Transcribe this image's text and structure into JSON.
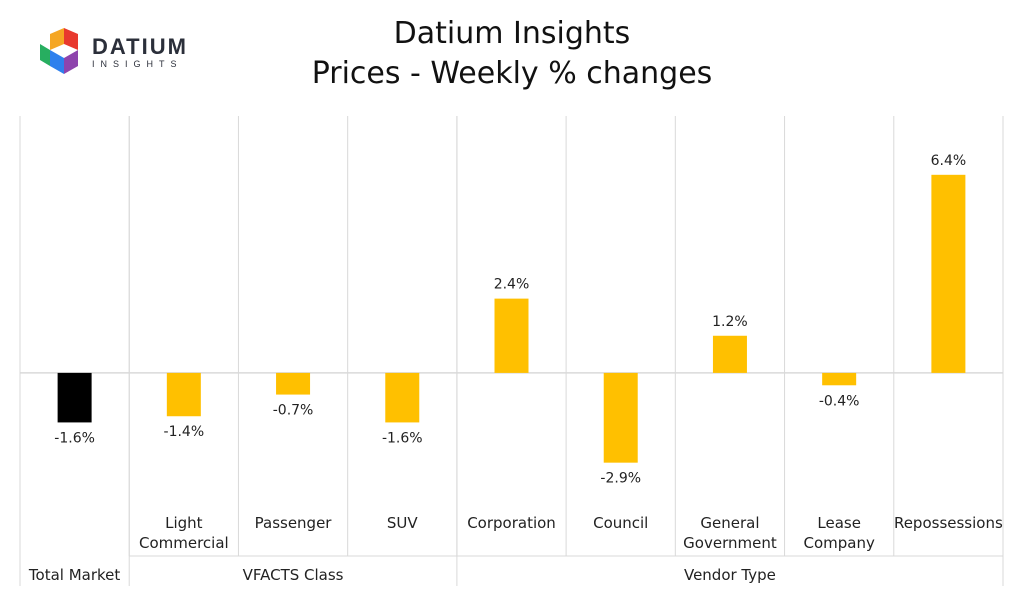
{
  "logo": {
    "name": "DATIUM",
    "tagline": "INSIGHTS",
    "colors": [
      "#f5a623",
      "#e8392e",
      "#8e44ad",
      "#2f80ed",
      "#27ae60"
    ]
  },
  "chart_data": {
    "type": "bar",
    "title": "Datium Insights",
    "subtitle": "Prices - Weekly % changes",
    "categories": [
      [
        "Total Market"
      ],
      [
        "Light",
        "Commercial"
      ],
      [
        "Passenger"
      ],
      [
        "SUV"
      ],
      [
        "Corporation"
      ],
      [
        "Council"
      ],
      [
        "General",
        "Government"
      ],
      [
        "Lease",
        "Company"
      ],
      [
        "Repossessions"
      ]
    ],
    "groups": [
      {
        "label": "",
        "span": [
          0,
          0
        ]
      },
      {
        "label": "VFACTS Class",
        "span": [
          1,
          3
        ]
      },
      {
        "label": "Vendor Type",
        "span": [
          4,
          8
        ]
      }
    ],
    "values": [
      -1.6,
      -1.4,
      -0.7,
      -1.6,
      2.4,
      -2.9,
      1.2,
      -0.4,
      6.4
    ],
    "data_labels": [
      "-1.6%",
      "-1.4%",
      "-0.7%",
      "-1.6%",
      "2.4%",
      "-2.9%",
      "1.2%",
      "-0.4%",
      "6.4%"
    ],
    "colors": [
      "#000000",
      "#ffc000",
      "#ffc000",
      "#ffc000",
      "#ffc000",
      "#ffc000",
      "#ffc000",
      "#ffc000",
      "#ffc000"
    ],
    "ylim": [
      -4.3,
      8.3
    ],
    "xlabel": "",
    "ylabel": "",
    "grid": false
  }
}
